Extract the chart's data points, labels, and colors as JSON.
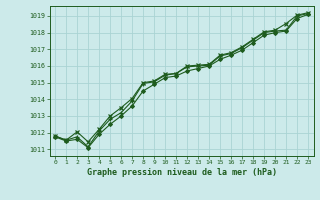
{
  "title": "Graphe pression niveau de la mer (hPa)",
  "bg_color": "#cceaea",
  "grid_color": "#aad4d4",
  "line_color": "#1e5c1e",
  "xlim": [
    -0.5,
    23.5
  ],
  "ylim": [
    1010.6,
    1019.6
  ],
  "yticks": [
    1011,
    1012,
    1013,
    1014,
    1015,
    1016,
    1017,
    1018,
    1019
  ],
  "xticks": [
    0,
    1,
    2,
    3,
    4,
    5,
    6,
    7,
    8,
    9,
    10,
    11,
    12,
    13,
    14,
    15,
    16,
    17,
    18,
    19,
    20,
    21,
    22,
    23
  ],
  "series1_x": [
    0,
    1,
    2,
    3,
    4,
    5,
    6,
    7,
    8,
    9,
    10,
    11,
    12,
    13,
    14,
    15,
    16,
    17,
    18,
    19,
    20,
    21,
    22,
    23
  ],
  "series1_y": [
    1011.8,
    1011.55,
    1011.75,
    1011.15,
    1012.1,
    1012.8,
    1013.2,
    1013.9,
    1014.95,
    1015.05,
    1015.45,
    1015.55,
    1015.95,
    1016.0,
    1016.05,
    1016.6,
    1016.75,
    1017.1,
    1017.55,
    1018.0,
    1018.1,
    1018.15,
    1019.0,
    1019.15
  ],
  "series2_x": [
    0,
    1,
    2,
    3,
    4,
    5,
    6,
    7,
    8,
    9,
    10,
    11,
    12,
    13,
    14,
    15,
    16,
    17,
    18,
    19,
    20,
    21,
    22,
    23
  ],
  "series2_y": [
    1011.8,
    1011.55,
    1012.05,
    1011.45,
    1012.2,
    1013.0,
    1013.5,
    1014.05,
    1015.0,
    1015.1,
    1015.5,
    1015.55,
    1016.0,
    1016.05,
    1016.1,
    1016.65,
    1016.8,
    1017.15,
    1017.6,
    1018.05,
    1018.15,
    1018.55,
    1019.05,
    1019.2
  ],
  "series3_x": [
    0,
    1,
    2,
    3,
    4,
    5,
    6,
    7,
    8,
    9,
    10,
    11,
    12,
    13,
    14,
    15,
    16,
    17,
    18,
    19,
    20,
    21,
    22,
    23
  ],
  "series3_y": [
    1011.75,
    1011.5,
    1011.6,
    1011.1,
    1011.9,
    1012.5,
    1013.0,
    1013.6,
    1014.5,
    1014.9,
    1015.3,
    1015.4,
    1015.7,
    1015.85,
    1016.0,
    1016.4,
    1016.65,
    1016.95,
    1017.4,
    1017.85,
    1018.0,
    1018.1,
    1018.85,
    1019.1
  ]
}
